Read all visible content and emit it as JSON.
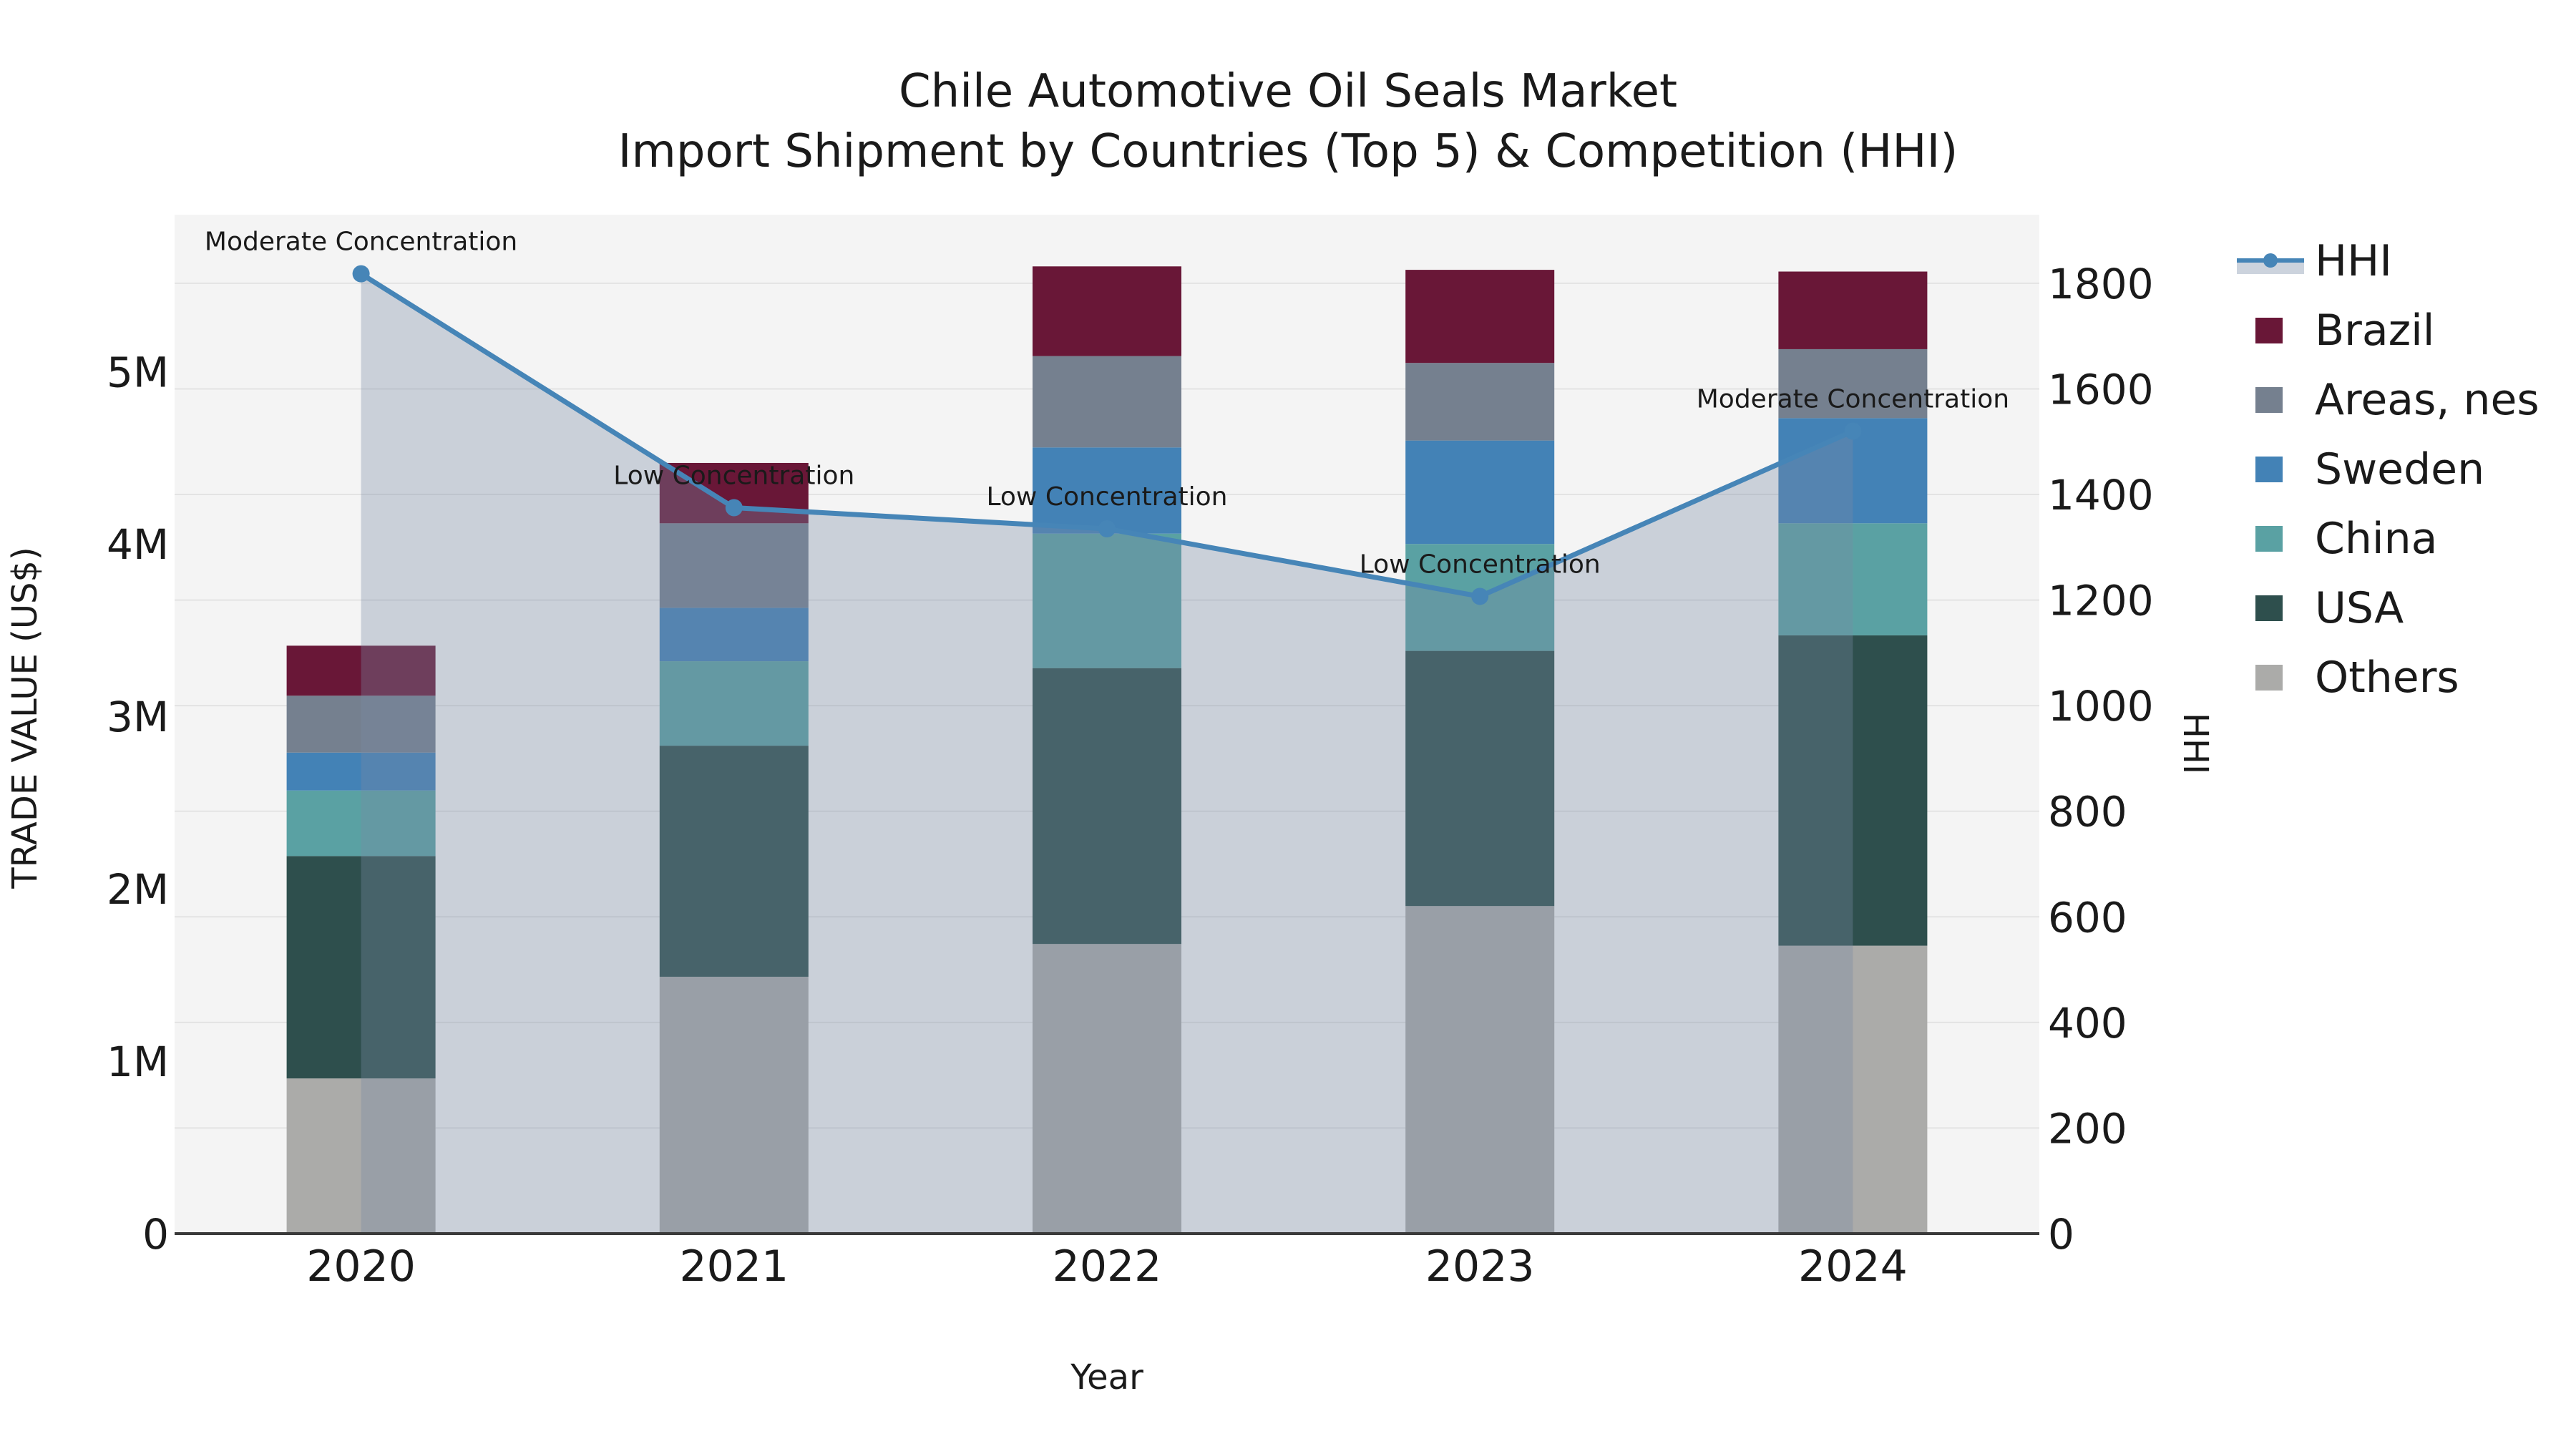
{
  "title": {
    "line1": "Chile Automotive Oil Seals Market",
    "line2": "Import Shipment by Countries (Top 5) & Competition (HHI)"
  },
  "axes": {
    "x_label": "Year",
    "y_left_label": "TRADE VALUE (US$)",
    "y_right_label": "HHI",
    "y_left_ticks": [
      {
        "value": 0,
        "label": "0"
      },
      {
        "value": 1,
        "label": "1M"
      },
      {
        "value": 2,
        "label": "2M"
      },
      {
        "value": 3,
        "label": "3M"
      },
      {
        "value": 4,
        "label": "4M"
      },
      {
        "value": 5,
        "label": "5M"
      }
    ],
    "y_right_ticks": [
      {
        "value": 0,
        "label": "0"
      },
      {
        "value": 200,
        "label": "200"
      },
      {
        "value": 400,
        "label": "400"
      },
      {
        "value": 600,
        "label": "600"
      },
      {
        "value": 800,
        "label": "800"
      },
      {
        "value": 1000,
        "label": "1000"
      },
      {
        "value": 1200,
        "label": "1200"
      },
      {
        "value": 1400,
        "label": "1400"
      },
      {
        "value": 1600,
        "label": "1600"
      },
      {
        "value": 1800,
        "label": "1800"
      }
    ]
  },
  "chart_data": {
    "type": "stacked-bar+line",
    "categories": [
      "2020",
      "2021",
      "2022",
      "2023",
      "2024"
    ],
    "units_left": "million US$ trade value",
    "units_right": "HHI index",
    "left_axis": {
      "min": 0,
      "max": 5.91
    },
    "right_axis": {
      "min": 0,
      "max": 1930
    },
    "grid": "horizontal lines at right-axis 200-steps",
    "legend_position": "right",
    "bar_series_bottom_to_top": [
      "Others",
      "USA",
      "China",
      "Sweden",
      "Areas, nes",
      "Brazil"
    ],
    "series": [
      {
        "name": "Brazil",
        "type": "bar",
        "color": "#691737",
        "values": [
          0.29,
          0.35,
          0.52,
          0.54,
          0.45
        ]
      },
      {
        "name": "Areas, nes",
        "type": "bar",
        "color": "#75808F",
        "values": [
          0.33,
          0.49,
          0.53,
          0.45,
          0.4
        ]
      },
      {
        "name": "Sweden",
        "type": "bar",
        "color": "#4382B6",
        "values": [
          0.22,
          0.31,
          0.5,
          0.6,
          0.61
        ]
      },
      {
        "name": "China",
        "type": "bar",
        "color": "#5AA1A3",
        "values": [
          0.38,
          0.49,
          0.78,
          0.62,
          0.65
        ]
      },
      {
        "name": "USA",
        "type": "bar",
        "color": "#2E4F4D",
        "values": [
          1.29,
          1.34,
          1.6,
          1.48,
          1.8
        ]
      },
      {
        "name": "Others",
        "type": "bar",
        "color": "#ABABA9",
        "values": [
          0.9,
          1.49,
          1.68,
          1.9,
          1.67
        ]
      },
      {
        "name": "HHI",
        "type": "line",
        "axis": "right",
        "color": "#4685B7",
        "area_fill": "rgba(120,138,163,0.34)",
        "values": [
          1818,
          1375,
          1335,
          1207,
          1520
        ]
      }
    ],
    "annotations": [
      {
        "category": "2020",
        "text": "Moderate Concentration"
      },
      {
        "category": "2021",
        "text": "Low Concentration"
      },
      {
        "category": "2022",
        "text": "Low Concentration"
      },
      {
        "category": "2023",
        "text": "Low Concentration"
      },
      {
        "category": "2024",
        "text": "Moderate Concentration"
      }
    ]
  },
  "legend": {
    "items": [
      {
        "label": "HHI",
        "swatch": "line",
        "color": "#4685B7",
        "band_color": "#ccd3dd"
      },
      {
        "label": "Brazil",
        "swatch": "patch",
        "color": "#691737"
      },
      {
        "label": "Areas, nes",
        "swatch": "patch",
        "color": "#75808F"
      },
      {
        "label": "Sweden",
        "swatch": "patch",
        "color": "#4382B6"
      },
      {
        "label": "China",
        "swatch": "patch",
        "color": "#5AA1A3"
      },
      {
        "label": "USA",
        "swatch": "patch",
        "color": "#2E4F4D"
      },
      {
        "label": "Others",
        "swatch": "patch",
        "color": "#ABABA9"
      }
    ]
  },
  "style": {
    "plot_bg": "#F4F4F4",
    "grid_color": "#E3E3E3",
    "spine_color": "#3A3A3A",
    "annotation_color": "#111111"
  }
}
